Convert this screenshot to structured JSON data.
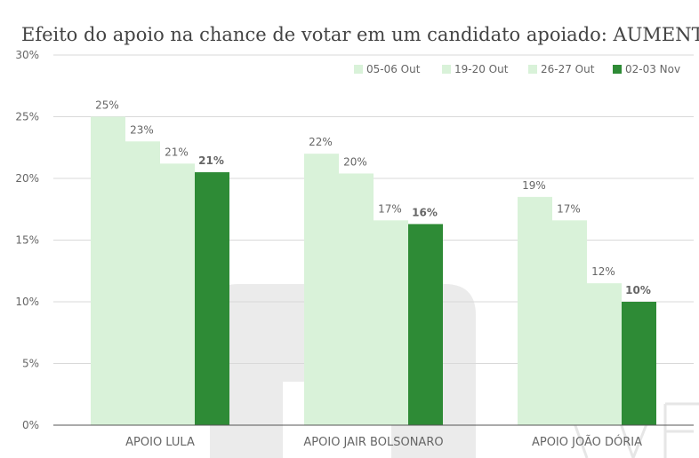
{
  "chart_data": {
    "type": "bar",
    "title": "Efeito do apoio na chance de votar em um candidato apoiado: AUMENTA",
    "xlabel": "",
    "ylabel": "",
    "ylim": [
      0,
      30
    ],
    "yticks": [
      "0%",
      "5%",
      "10%",
      "15%",
      "20%",
      "25%",
      "30%"
    ],
    "ytick_values": [
      0,
      5,
      10,
      15,
      20,
      25,
      30
    ],
    "grid": true,
    "legend_position": "top-right",
    "categories": [
      "APOIO LULA",
      "APOIO JAIR BOLSONARO",
      "APOIO JOÃO DÓRIA"
    ],
    "series": [
      {
        "name": "05-06 Out",
        "color": "#d9f2d9",
        "values": [
          25,
          22,
          18.5
        ],
        "labels": [
          "25%",
          "22%",
          "19%"
        ]
      },
      {
        "name": "19-20 Out",
        "color": "#d9f2d9",
        "values": [
          23,
          20.4,
          16.6
        ],
        "labels": [
          "23%",
          "20%",
          "17%"
        ]
      },
      {
        "name": "26-27 Out",
        "color": "#d9f2d9",
        "values": [
          21.2,
          16.6,
          11.5
        ],
        "labels": [
          "21%",
          "17%",
          "12%"
        ]
      },
      {
        "name": "02-03 Nov",
        "color": "#2e8b36",
        "values": [
          20.5,
          16.3,
          10
        ],
        "labels": [
          "21%",
          "16%",
          "10%"
        ],
        "bold_labels": true
      }
    ]
  },
  "colors": {
    "text": "#666666",
    "title": "#444444",
    "grid": "#d9d9d9",
    "axis": "#555555",
    "watermark": "#e8e8e8"
  }
}
